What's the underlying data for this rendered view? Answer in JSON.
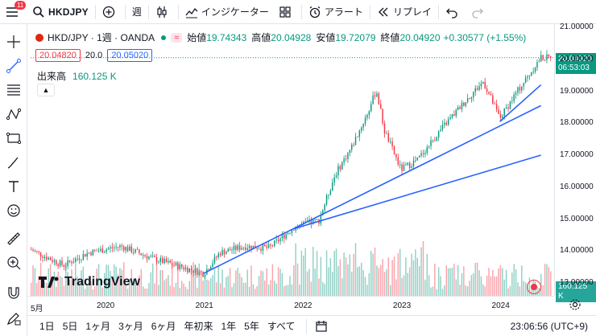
{
  "topbar": {
    "badge": "11",
    "symbol": "HKDJPY",
    "interval": "週",
    "indicators_label": "インジケーター",
    "alert_label": "アラート",
    "replay_label": "リプレイ"
  },
  "legend": {
    "title": "HKD/JPY · 1週 · OANDA",
    "open_label": "始値",
    "open": "19.74343",
    "high_label": "高値",
    "high": "20.04928",
    "low_label": "安値",
    "low": "19.72079",
    "close_label": "終値",
    "close": "20.04920",
    "change": "+0.30577 (+1.55%)",
    "bid": "20.04820",
    "spread": "20.0",
    "ask": "20.05020",
    "volume_label": "出来高",
    "volume": "160.125 K"
  },
  "price_axis": {
    "ticks": [
      "21.00000",
      "20.00000",
      "19.00000",
      "18.00000",
      "17.00000",
      "16.00000",
      "15.00000",
      "14.00000",
      "13.00000"
    ],
    "last_price": "20.04920",
    "countdown": "06:53:03",
    "volume_tag": "160.125 K"
  },
  "time_axis": {
    "ticks": [
      "5月",
      "2020",
      "2021",
      "2022",
      "2023",
      "2024"
    ]
  },
  "watermark": "TradingView",
  "bottombar": {
    "ranges": [
      "1日",
      "5日",
      "1ヶ月",
      "3ヶ月",
      "6ヶ月",
      "年初来",
      "1年",
      "5年",
      "すべて"
    ],
    "time": "23:06:56 (UTC+9)"
  },
  "colors": {
    "up": "#089981",
    "down": "#f23645",
    "trendline": "#2962ff"
  },
  "chart_data": {
    "type": "candlestick",
    "title": "HKD/JPY · 1週 · OANDA",
    "ylim": [
      12.6,
      21.1
    ],
    "grid": false,
    "anchors": [
      {
        "t": "2019-04",
        "price": 14.05
      },
      {
        "t": "2019-08",
        "price": 13.55
      },
      {
        "t": "2019-11",
        "price": 13.95
      },
      {
        "t": "2020-03",
        "price": 14.15
      },
      {
        "t": "2020-07",
        "price": 13.75
      },
      {
        "t": "2020-11",
        "price": 13.45
      },
      {
        "t": "2021-01",
        "price": 13.3
      },
      {
        "t": "2021-03",
        "price": 13.95
      },
      {
        "t": "2021-06",
        "price": 14.15
      },
      {
        "t": "2021-09",
        "price": 14.1
      },
      {
        "t": "2021-12",
        "price": 14.75
      },
      {
        "t": "2022-03",
        "price": 14.95
      },
      {
        "t": "2022-05",
        "price": 16.4
      },
      {
        "t": "2022-07",
        "price": 17.25
      },
      {
        "t": "2022-09",
        "price": 18.35
      },
      {
        "t": "2022-10",
        "price": 19.05
      },
      {
        "t": "2022-11",
        "price": 17.75
      },
      {
        "t": "2023-01",
        "price": 16.55
      },
      {
        "t": "2023-03",
        "price": 16.85
      },
      {
        "t": "2023-06",
        "price": 17.85
      },
      {
        "t": "2023-09",
        "price": 18.75
      },
      {
        "t": "2023-11",
        "price": 19.3
      },
      {
        "t": "2024-01",
        "price": 18.15
      },
      {
        "t": "2024-03",
        "price": 18.95
      },
      {
        "t": "2024-06",
        "price": 20.05
      }
    ],
    "trendlines": [
      {
        "from": {
          "t": "2021-01",
          "price": 13.3
        },
        "to": {
          "t": "2024-06",
          "price": 18.55
        }
      },
      {
        "from": {
          "t": "2021-12",
          "price": 14.7
        },
        "to": {
          "t": "2024-06",
          "price": 17.0
        }
      },
      {
        "from": {
          "t": "2024-01",
          "price": 18.05
        },
        "to": {
          "t": "2024-06",
          "price": 19.2
        }
      }
    ],
    "volume": {
      "last": "160.125 K"
    }
  }
}
